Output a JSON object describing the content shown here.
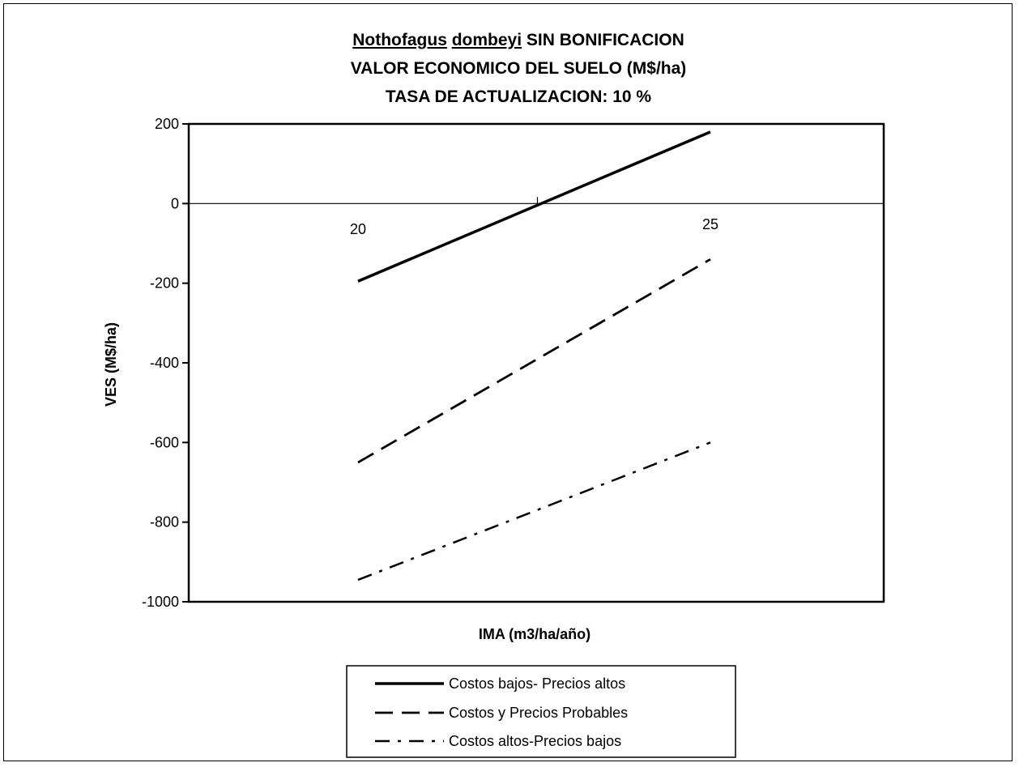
{
  "chart_data": {
    "type": "line",
    "title": {
      "line1_part1": "Nothofagus",
      "line1_part2": "dombeyi",
      "line1_part3": " SIN BONIFICACION",
      "line2": "VALOR ECONOMICO DEL SUELO (M$/ha)",
      "line3": "TASA DE ACTUALIZACION: 10 %"
    },
    "xlabel": "IMA (m3/ha/año)",
    "ylabel": "VES (M$/ha)",
    "x": [
      20,
      25
    ],
    "x_tick_labels": [
      "20",
      "25"
    ],
    "ylim": [
      -1000,
      200
    ],
    "y_ticks": [
      200,
      0,
      -200,
      -400,
      -600,
      -800,
      -1000
    ],
    "y_tick_labels": [
      "200",
      "0",
      "-200",
      "-400",
      "-600",
      "-800",
      "-1000"
    ],
    "grid": false,
    "legend_position": "bottom",
    "series": [
      {
        "name": "Costos bajos- Precios altos",
        "values": [
          -195,
          180
        ],
        "style": "solid",
        "color": "#000000"
      },
      {
        "name": "Costos y Precios Probables",
        "values": [
          -650,
          -140
        ],
        "style": "dashed",
        "color": "#000000"
      },
      {
        "name": "Costos altos-Precios bajos",
        "values": [
          -945,
          -600
        ],
        "style": "dashdot",
        "color": "#000000"
      }
    ]
  }
}
